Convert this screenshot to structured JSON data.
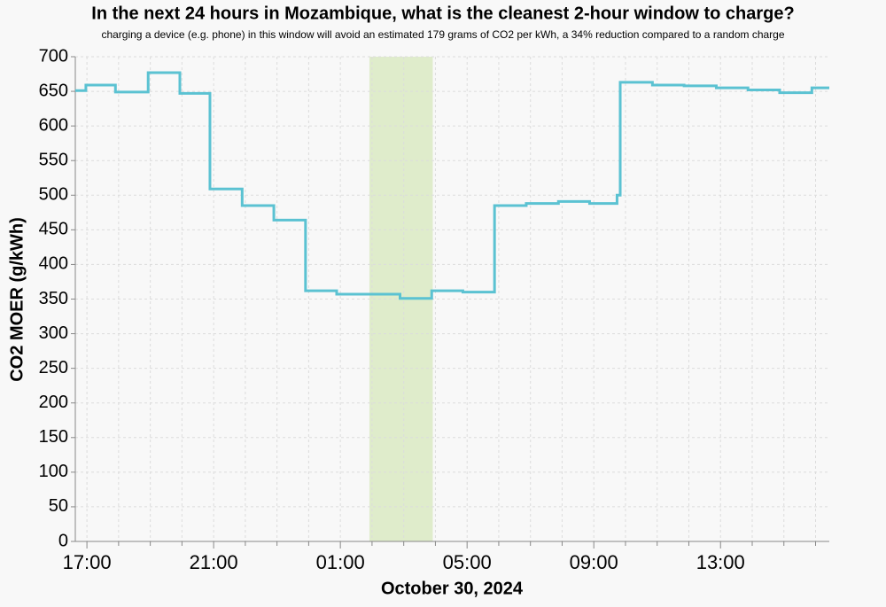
{
  "chart_data": {
    "type": "step-line",
    "title": "In the next 24 hours in Mozambique, what is the cleanest 2-hour window to charge?",
    "subtitle": "charging a device (e.g. phone) in this window will avoid an estimated 179 grams of CO2 per kWh, a 34% reduction compared to a random charge",
    "x_label": "October 30, 2024",
    "y_label": "CO2 MOER (g/kWh)",
    "x": [
      "16:38",
      "16:58",
      "17:54",
      "18:56",
      "19:56",
      "20:53",
      "21:54",
      "22:54",
      "23:54",
      "00:53",
      "02:53",
      "03:53",
      "04:52",
      "05:52",
      "06:52",
      "07:53",
      "08:52",
      "09:44",
      "09:50",
      "10:51",
      "11:51",
      "12:52",
      "13:52",
      "14:52",
      "15:53",
      "16:26"
    ],
    "series": [
      {
        "name": "CO2 MOER",
        "color": "#5bc2d2",
        "values": [
          651,
          659,
          649,
          677,
          647,
          509,
          485,
          464,
          362,
          357,
          351,
          362,
          360,
          485,
          488,
          491,
          488,
          500,
          663,
          659,
          658,
          655,
          652,
          648,
          655,
          655
        ]
      }
    ],
    "highlight": {
      "from": "01:55",
      "to": "03:55",
      "color": "#dfeccb"
    },
    "xlim": [
      "16:38",
      "16:26"
    ],
    "xticks": [
      "17:00",
      "21:00",
      "01:00",
      "05:00",
      "09:00",
      "13:00"
    ],
    "x_minor_ticks": [
      "18:00",
      "19:00",
      "20:00",
      "22:00",
      "23:00",
      "00:00",
      "02:00",
      "03:00",
      "04:00",
      "06:00",
      "07:00",
      "08:00",
      "10:00",
      "11:00",
      "12:00",
      "14:00",
      "15:00",
      "16:00"
    ],
    "ylim": [
      0,
      700
    ],
    "yticks": [
      0,
      50,
      100,
      150,
      200,
      250,
      300,
      350,
      400,
      450,
      500,
      550,
      600,
      650,
      700
    ],
    "grid": true
  }
}
